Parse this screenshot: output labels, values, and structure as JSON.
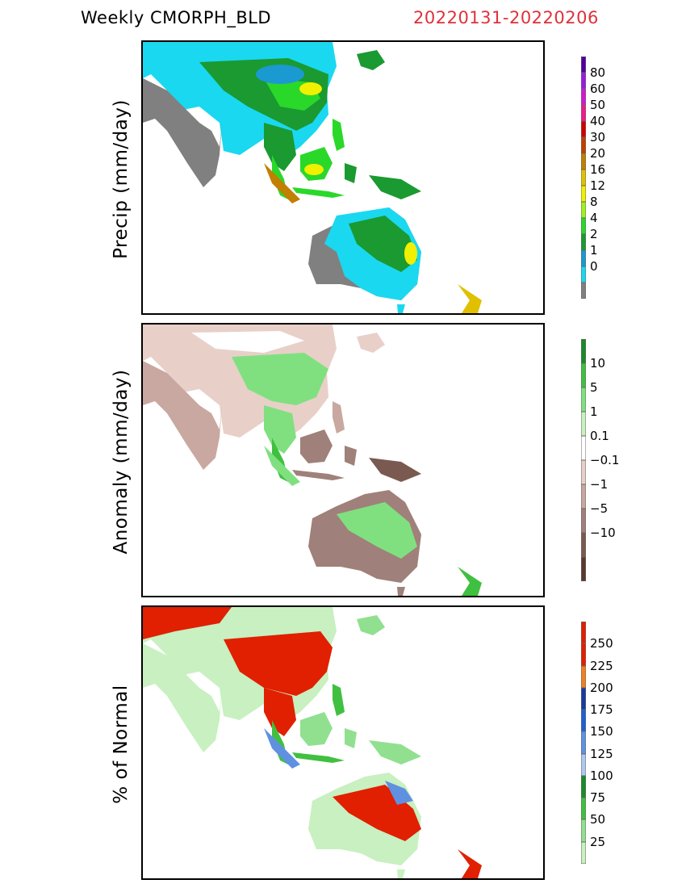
{
  "header": {
    "title": "Weekly  CMORPH_BLD",
    "date_range": "20220131-20220206"
  },
  "panels": [
    {
      "id": "precip",
      "ylabel": "Precip  (mm/day)",
      "colorbar": [
        {
          "color": "#808080",
          "label": ""
        },
        {
          "color": "#1ad8f0",
          "label": "0"
        },
        {
          "color": "#1a9ad0",
          "label": "1"
        },
        {
          "color": "#1a9a30",
          "label": "2"
        },
        {
          "color": "#2ad82a",
          "label": "4"
        },
        {
          "color": "#a0f020",
          "label": "8"
        },
        {
          "color": "#f0f000",
          "label": "12"
        },
        {
          "color": "#e0c000",
          "label": "16"
        },
        {
          "color": "#c08000",
          "label": "20"
        },
        {
          "color": "#c04000",
          "label": "30"
        },
        {
          "color": "#d00000",
          "label": "40"
        },
        {
          "color": "#f01a8a",
          "label": "50"
        },
        {
          "color": "#d01ad0",
          "label": "60"
        },
        {
          "color": "#9a1ae0",
          "label": "80"
        },
        {
          "color": "#5000a0",
          "label": ""
        }
      ]
    },
    {
      "id": "anomaly",
      "ylabel": "Anomaly  (mm/day)",
      "colorbar": [
        {
          "color": "#5a3a30",
          "label": ""
        },
        {
          "color": "#7a5a50",
          "label": "−10"
        },
        {
          "color": "#a0807a",
          "label": "−5"
        },
        {
          "color": "#c8a8a0",
          "label": "−1"
        },
        {
          "color": "#e8d0c8",
          "label": "−0.1"
        },
        {
          "color": "#ffffff",
          "label": "0.1"
        },
        {
          "color": "#c8f0c0",
          "label": "1"
        },
        {
          "color": "#80e080",
          "label": "5"
        },
        {
          "color": "#40c040",
          "label": "10"
        },
        {
          "color": "#1a8a2a",
          "label": ""
        }
      ]
    },
    {
      "id": "percent",
      "ylabel": "% of  Normal",
      "colorbar": [
        {
          "color": "#c8f0c0",
          "label": "25"
        },
        {
          "color": "#90e090",
          "label": "50"
        },
        {
          "color": "#40c040",
          "label": "75"
        },
        {
          "color": "#1a8a2a",
          "label": "100"
        },
        {
          "color": "#b0c8f0",
          "label": "125"
        },
        {
          "color": "#6090e0",
          "label": "150"
        },
        {
          "color": "#2060d0",
          "label": "175"
        },
        {
          "color": "#1a3aa0",
          "label": "200"
        },
        {
          "color": "#f08020",
          "label": "225"
        },
        {
          "color": "#e02000",
          "label": "250"
        },
        {
          "color": "#e02000",
          "label": ""
        }
      ]
    }
  ]
}
